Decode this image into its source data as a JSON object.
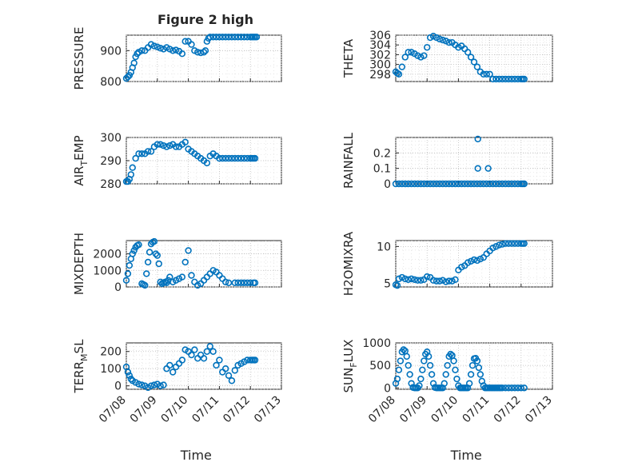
{
  "figure": {
    "title": "Figure 2 high",
    "time_label": "Time"
  },
  "chart_data": [
    {
      "type": "scatter",
      "ylabel": "PRESSURE",
      "title": "Figure 2 high",
      "ylim": [
        800,
        950
      ],
      "yticks": [
        800,
        900
      ],
      "xticks_shown": false,
      "x_label": "",
      "marker": "circle",
      "color": "#0072BD",
      "series": [
        {
          "x": [
            0.0,
            0.05,
            0.1,
            0.15,
            0.2,
            0.25,
            0.3,
            0.35,
            0.4,
            0.5,
            0.6,
            0.7,
            0.8,
            0.9,
            1.0,
            1.1,
            1.2,
            1.3,
            1.4,
            1.5,
            1.6,
            1.7,
            1.8,
            1.9,
            2.0,
            2.1,
            2.2,
            2.3,
            2.4,
            2.5,
            2.55,
            2.6,
            2.65,
            2.7,
            2.8,
            2.9,
            3.0,
            3.1,
            3.2,
            3.3,
            3.4,
            3.5,
            3.6,
            3.7,
            3.8,
            3.9,
            4.0,
            4.05,
            4.1,
            4.15,
            4.2
          ],
          "y": [
            810,
            815,
            820,
            830,
            845,
            860,
            880,
            890,
            895,
            900,
            900,
            910,
            920,
            915,
            912,
            908,
            905,
            910,
            905,
            900,
            902,
            898,
            890,
            930,
            930,
            920,
            900,
            895,
            893,
            895,
            900,
            930,
            940,
            944,
            944,
            944,
            944,
            944,
            944,
            944,
            944,
            944,
            944,
            944,
            944,
            944,
            944,
            944,
            944,
            944,
            944
          ]
        }
      ]
    },
    {
      "type": "scatter",
      "ylabel": "THETA",
      "ylim": [
        296.5,
        306
      ],
      "yticks": [
        298,
        300,
        302,
        304,
        306
      ],
      "xticks_shown": false,
      "series": [
        {
          "x": [
            0.0,
            0.05,
            0.1,
            0.2,
            0.3,
            0.4,
            0.5,
            0.6,
            0.7,
            0.8,
            0.9,
            1.0,
            1.1,
            1.2,
            1.3,
            1.4,
            1.5,
            1.6,
            1.7,
            1.8,
            1.9,
            2.0,
            2.1,
            2.2,
            2.3,
            2.4,
            2.5,
            2.6,
            2.7,
            2.8,
            2.9,
            3.0,
            3.1,
            3.2,
            3.3,
            3.4,
            3.5,
            3.6,
            3.7,
            3.8,
            3.9,
            4.0,
            4.05,
            4.1
          ],
          "y": [
            298.5,
            298.2,
            298.0,
            299.5,
            301.5,
            302.5,
            302.5,
            302.2,
            301.8,
            301.5,
            301.8,
            303.5,
            305.5,
            305.8,
            305.5,
            305.2,
            305.0,
            304.8,
            304.5,
            304.5,
            304.0,
            303.5,
            303.8,
            303.2,
            302.5,
            301.5,
            300.5,
            299.5,
            298.5,
            298.0,
            298.0,
            298.0,
            297.0,
            297.0,
            297.0,
            297.0,
            297.0,
            297.0,
            297.0,
            297.0,
            297.0,
            297.0,
            297.0,
            297.0
          ]
        }
      ]
    },
    {
      "type": "scatter",
      "ylabel": "AIR_TEMP",
      "ylim": [
        280,
        300
      ],
      "yticks": [
        280,
        290,
        300
      ],
      "xticks_shown": false,
      "series": [
        {
          "x": [
            0.0,
            0.05,
            0.1,
            0.15,
            0.2,
            0.3,
            0.4,
            0.5,
            0.6,
            0.7,
            0.8,
            0.9,
            1.0,
            1.1,
            1.2,
            1.3,
            1.4,
            1.5,
            1.6,
            1.7,
            1.8,
            1.9,
            2.0,
            2.1,
            2.2,
            2.3,
            2.4,
            2.5,
            2.6,
            2.7,
            2.8,
            2.9,
            3.0,
            3.1,
            3.2,
            3.3,
            3.4,
            3.5,
            3.6,
            3.7,
            3.8,
            3.9,
            4.0,
            4.05,
            4.1,
            4.15
          ],
          "y": [
            281,
            281,
            282,
            284,
            287,
            291,
            293,
            293,
            293,
            294,
            294,
            296,
            297,
            297,
            296.5,
            296,
            296.5,
            297,
            296,
            296,
            297,
            298,
            295,
            294,
            293,
            292,
            291,
            290,
            289,
            292,
            293,
            292,
            291,
            291,
            291,
            291,
            291,
            291,
            291,
            291,
            291,
            291,
            291,
            291,
            291,
            291
          ]
        }
      ]
    },
    {
      "type": "scatter",
      "ylabel": "RAINFALL",
      "ylim": [
        0,
        0.3
      ],
      "yticks": [
        0,
        0.1,
        0.2
      ],
      "xticks_shown": false,
      "series": [
        {
          "x": [
            0.0,
            0.1,
            0.2,
            0.3,
            0.4,
            0.5,
            0.6,
            0.7,
            0.8,
            0.9,
            1.0,
            1.1,
            1.2,
            1.3,
            1.4,
            1.5,
            1.6,
            1.7,
            1.8,
            1.9,
            2.0,
            2.1,
            2.2,
            2.3,
            2.4,
            2.5,
            2.6,
            2.7,
            2.8,
            2.9,
            3.0,
            3.1,
            3.2,
            3.3,
            3.4,
            3.5,
            3.6,
            3.7,
            3.8,
            3.9,
            4.0,
            4.05,
            4.1,
            2.62,
            2.62,
            2.95
          ],
          "y": [
            0,
            0,
            0,
            0,
            0,
            0,
            0,
            0,
            0,
            0,
            0,
            0,
            0,
            0,
            0,
            0,
            0,
            0,
            0,
            0,
            0,
            0,
            0,
            0,
            0,
            0,
            0,
            0,
            0,
            0,
            0,
            0,
            0,
            0,
            0,
            0,
            0,
            0,
            0,
            0,
            0,
            0,
            0,
            0.29,
            0.1,
            0.1
          ]
        }
      ]
    },
    {
      "type": "scatter",
      "ylabel": "MIXDEPTH",
      "ylim": [
        0,
        2800
      ],
      "yticks": [
        0,
        1000,
        2000
      ],
      "xticks_shown": false,
      "series": [
        {
          "x": [
            0.0,
            0.05,
            0.1,
            0.15,
            0.2,
            0.25,
            0.3,
            0.35,
            0.4,
            0.5,
            0.55,
            0.6,
            0.65,
            0.7,
            0.75,
            0.8,
            0.85,
            0.9,
            0.95,
            1.0,
            1.05,
            1.1,
            1.15,
            1.2,
            1.25,
            1.3,
            1.35,
            1.4,
            1.5,
            1.6,
            1.7,
            1.8,
            1.9,
            2.0,
            2.1,
            2.2,
            2.3,
            2.4,
            2.5,
            2.6,
            2.7,
            2.8,
            2.9,
            3.0,
            3.1,
            3.2,
            3.3,
            3.5,
            3.6,
            3.7,
            3.8,
            3.9,
            4.0,
            4.1,
            4.15
          ],
          "y": [
            400,
            800,
            1300,
            1700,
            2000,
            2200,
            2400,
            2500,
            2550,
            200,
            150,
            100,
            800,
            1500,
            2100,
            2600,
            2700,
            2750,
            2000,
            1900,
            1400,
            300,
            200,
            250,
            300,
            250,
            400,
            600,
            300,
            400,
            500,
            600,
            1500,
            2200,
            700,
            300,
            100,
            200,
            400,
            600,
            800,
            1000,
            900,
            700,
            500,
            300,
            250,
            250,
            250,
            250,
            250,
            250,
            250,
            250,
            250
          ]
        }
      ]
    },
    {
      "type": "scatter",
      "ylabel": "H2OMIXRA",
      "ylim": [
        4.5,
        10.8
      ],
      "yticks": [
        5,
        10
      ],
      "xticks_shown": false,
      "series": [
        {
          "x": [
            0.0,
            0.05,
            0.1,
            0.2,
            0.3,
            0.4,
            0.5,
            0.6,
            0.7,
            0.8,
            0.9,
            1.0,
            1.1,
            1.2,
            1.3,
            1.4,
            1.5,
            1.6,
            1.7,
            1.8,
            1.9,
            2.0,
            2.1,
            2.2,
            2.3,
            2.4,
            2.5,
            2.6,
            2.7,
            2.8,
            2.9,
            3.0,
            3.1,
            3.2,
            3.3,
            3.4,
            3.5,
            3.6,
            3.7,
            3.8,
            3.9,
            4.0,
            4.05,
            4.1
          ],
          "y": [
            4.8,
            4.7,
            5.6,
            5.8,
            5.6,
            5.5,
            5.6,
            5.5,
            5.4,
            5.4,
            5.5,
            5.9,
            5.8,
            5.4,
            5.3,
            5.3,
            5.4,
            5.2,
            5.3,
            5.3,
            5.5,
            6.8,
            7.2,
            7.4,
            7.8,
            8.0,
            8.2,
            8.1,
            8.3,
            8.5,
            9.0,
            9.4,
            9.8,
            10.0,
            10.2,
            10.3,
            10.4,
            10.4,
            10.4,
            10.4,
            10.4,
            10.4,
            10.4,
            10.4
          ]
        }
      ]
    },
    {
      "type": "scatter",
      "ylabel": "TERR_MSL",
      "ylim": [
        -20,
        250
      ],
      "yticks": [
        0,
        100,
        200
      ],
      "xticks_shown": true,
      "xlabel": "Time",
      "xtick_labels": [
        "07/08",
        "07/09",
        "07/10",
        "07/11",
        "07/12",
        "07/13"
      ],
      "series": [
        {
          "x": [
            0.0,
            0.05,
            0.1,
            0.15,
            0.2,
            0.3,
            0.4,
            0.5,
            0.6,
            0.7,
            0.8,
            0.9,
            1.0,
            1.1,
            1.2,
            1.3,
            1.4,
            1.5,
            1.6,
            1.7,
            1.8,
            1.9,
            2.0,
            2.1,
            2.2,
            2.3,
            2.4,
            2.5,
            2.6,
            2.7,
            2.8,
            2.9,
            3.0,
            3.1,
            3.2,
            3.3,
            3.4,
            3.5,
            3.6,
            3.7,
            3.8,
            3.9,
            4.0,
            4.05,
            4.1,
            4.15
          ],
          "y": [
            110,
            80,
            60,
            40,
            30,
            20,
            10,
            5,
            0,
            -10,
            0,
            5,
            10,
            0,
            5,
            100,
            120,
            80,
            110,
            130,
            150,
            210,
            200,
            180,
            210,
            160,
            180,
            160,
            200,
            230,
            200,
            120,
            150,
            80,
            100,
            60,
            30,
            90,
            120,
            130,
            140,
            150,
            150,
            150,
            150,
            150
          ]
        }
      ]
    },
    {
      "type": "scatter",
      "ylabel": "SUN_FLUX",
      "ylim": [
        -30,
        1000
      ],
      "yticks": [
        0,
        500,
        1000
      ],
      "xticks_shown": true,
      "xlabel": "Time",
      "xtick_labels": [
        "07/08",
        "07/09",
        "07/10",
        "07/11",
        "07/12",
        "07/13"
      ],
      "series": [
        {
          "x": [
            0.0,
            0.05,
            0.1,
            0.15,
            0.2,
            0.25,
            0.3,
            0.35,
            0.4,
            0.45,
            0.5,
            0.55,
            0.6,
            0.65,
            0.7,
            0.75,
            0.8,
            0.85,
            0.9,
            0.95,
            1.0,
            1.05,
            1.1,
            1.15,
            1.2,
            1.25,
            1.3,
            1.35,
            1.4,
            1.45,
            1.5,
            1.55,
            1.6,
            1.65,
            1.7,
            1.75,
            1.8,
            1.85,
            1.9,
            1.95,
            2.0,
            2.05,
            2.1,
            2.15,
            2.2,
            2.25,
            2.3,
            2.35,
            2.4,
            2.45,
            2.5,
            2.55,
            2.6,
            2.65,
            2.7,
            2.75,
            2.8,
            2.85,
            2.9,
            2.95,
            3.0,
            3.05,
            3.1,
            3.15,
            3.2,
            3.25,
            3.3,
            3.35,
            3.4,
            3.5,
            3.6,
            3.7,
            3.8,
            3.9,
            4.0,
            4.1
          ],
          "y": [
            100,
            200,
            400,
            600,
            800,
            850,
            820,
            700,
            500,
            300,
            100,
            10,
            0,
            0,
            0,
            50,
            200,
            400,
            600,
            750,
            800,
            700,
            500,
            300,
            100,
            10,
            0,
            0,
            0,
            0,
            0,
            100,
            300,
            500,
            700,
            750,
            720,
            600,
            400,
            200,
            50,
            0,
            0,
            0,
            0,
            0,
            0,
            100,
            300,
            500,
            650,
            660,
            600,
            450,
            300,
            150,
            50,
            0,
            0,
            0,
            0,
            0,
            0,
            0,
            0,
            0,
            0,
            0,
            0,
            0,
            0,
            0,
            0,
            0,
            0,
            0
          ]
        }
      ]
    }
  ]
}
